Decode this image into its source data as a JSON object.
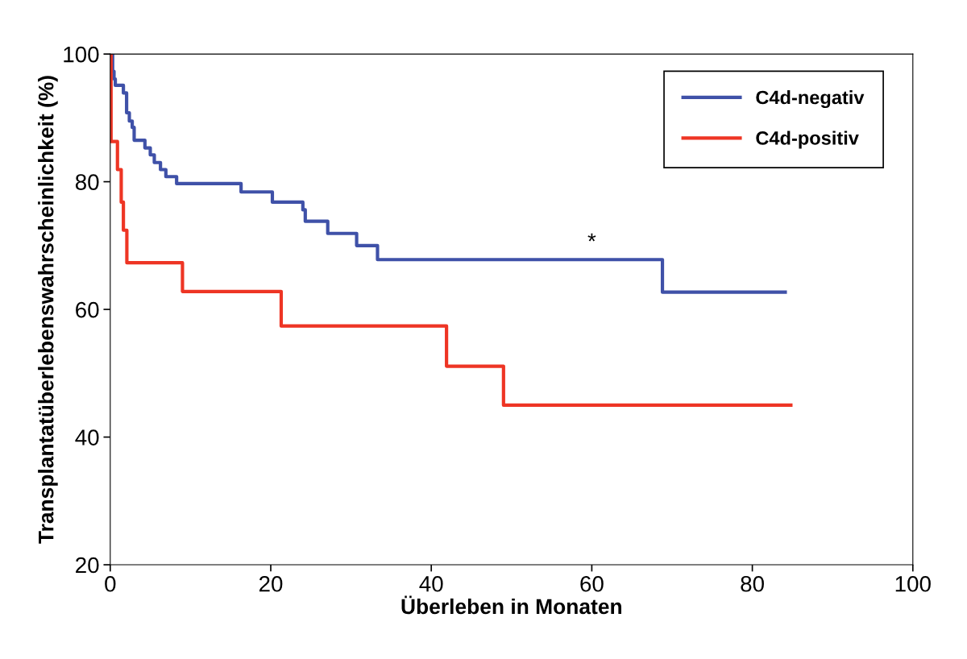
{
  "chart_data": {
    "type": "step",
    "xlabel": "Überleben in Monaten",
    "ylabel": "Transplantatüberlebenswahrscheinlichkeit (%)",
    "xlim": [
      0,
      100
    ],
    "ylim": [
      20,
      100
    ],
    "xticks": [
      0,
      20,
      40,
      60,
      80,
      100
    ],
    "yticks": [
      20,
      40,
      60,
      80,
      100
    ],
    "grid": false,
    "legend": "top right",
    "marker": "none",
    "line_style": "solid",
    "annotations": [
      "*"
    ],
    "series": [
      {
        "name": "C4d-negativ",
        "color": "#3f51a8",
        "x": [
          0,
          0.3,
          0.47,
          0.63,
          1.64,
          2.04,
          2.38,
          2.74,
          2.98,
          4.32,
          4.99,
          5.49,
          6.26,
          6.93,
          8.27,
          16.3,
          20.2,
          24.0,
          24.3,
          27.1,
          30.7,
          33.3,
          68.8,
          84.1
        ],
        "values": [
          100,
          97.3,
          96.1,
          95.1,
          93.9,
          90.8,
          89.5,
          88.5,
          86.5,
          85.3,
          84.2,
          83.0,
          81.9,
          80.8,
          79.7,
          78.4,
          76.8,
          75.6,
          73.8,
          71.9,
          70.0,
          67.8,
          62.7,
          62.7
        ]
      },
      {
        "name": "C4d-positiv",
        "color": "#ee3524",
        "x": [
          0,
          0.1,
          0.9,
          1.37,
          1.64,
          2.07,
          9.0,
          21.3,
          41.9,
          49.0,
          84.8
        ],
        "values": [
          100,
          86.3,
          81.9,
          76.8,
          72.4,
          67.3,
          62.8,
          57.4,
          51.1,
          45.0,
          45.0
        ]
      }
    ]
  }
}
